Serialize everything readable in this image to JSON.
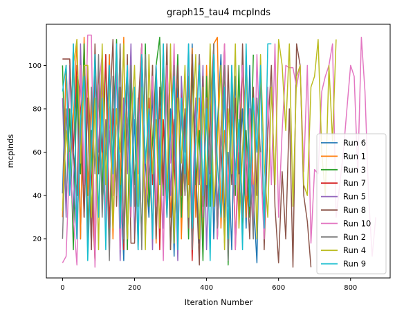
{
  "chart_data": {
    "type": "line",
    "title": "graph15_tau4 mcpInds",
    "xlabel": "Iteration Number",
    "ylabel": "mcpInds",
    "xlim": [
      -45,
      910
    ],
    "ylim": [
      2,
      119
    ],
    "xticks": [
      0,
      200,
      400,
      600,
      800
    ],
    "yticks": [
      20,
      40,
      60,
      80,
      100
    ],
    "legend_position": "lower right",
    "grid": false,
    "series": [
      {
        "name": "Run 6",
        "color": "#1f77b4",
        "x": [
          0,
          10,
          20,
          30,
          40,
          50,
          60,
          70,
          80,
          90,
          100,
          110,
          120,
          130,
          140,
          150,
          160,
          170,
          180,
          190,
          200,
          210,
          220,
          230,
          240,
          250,
          260,
          270,
          280,
          290,
          300,
          310,
          320,
          330,
          340,
          350,
          360,
          370,
          380,
          390,
          400,
          410,
          420,
          430,
          440,
          450,
          460,
          470,
          480,
          490,
          500,
          510,
          520,
          530,
          540,
          550
        ],
        "y": [
          41,
          100,
          55,
          30,
          90,
          20,
          110,
          45,
          70,
          12,
          95,
          35,
          60,
          105,
          25,
          80,
          50,
          10,
          100,
          40,
          75,
          15,
          108,
          55,
          30,
          90,
          20,
          65,
          103,
          35,
          80,
          12,
          98,
          45,
          70,
          25,
          110,
          50,
          18,
          88,
          40,
          100,
          20,
          72,
          105,
          30,
          60,
          15,
          95,
          50,
          80,
          25,
          100,
          40,
          9,
          100
        ]
      },
      {
        "name": "Run 1",
        "color": "#ff7f0e",
        "x": [
          0,
          10,
          20,
          30,
          40,
          50,
          60,
          70,
          80,
          90,
          100,
          110,
          120,
          130,
          140,
          150,
          160,
          170,
          180,
          190,
          200,
          210,
          220,
          230,
          240,
          250,
          260,
          270,
          280,
          290,
          300,
          310,
          320,
          330,
          340,
          350,
          360,
          370,
          380,
          390,
          400,
          410,
          420,
          430,
          440,
          450,
          460,
          470,
          480,
          490,
          500,
          510,
          520,
          530
        ],
        "y": [
          30,
          100,
          50,
          75,
          112,
          20,
          113,
          40,
          88,
          10,
          100,
          60,
          30,
          105,
          20,
          80,
          45,
          113,
          15,
          95,
          35,
          70,
          110,
          25,
          55,
          100,
          18,
          80,
          40,
          110,
          30,
          60,
          100,
          20,
          75,
          45,
          108,
          30,
          85,
          15,
          100,
          50,
          110,
          113,
          25,
          70,
          40,
          95,
          18,
          60,
          100,
          30,
          80,
          45
        ]
      },
      {
        "name": "Run 3",
        "color": "#2ca02c",
        "x": [
          0,
          10,
          20,
          30,
          40,
          50,
          60,
          70,
          80,
          90,
          100,
          110,
          120,
          130,
          140,
          150,
          160,
          170,
          180,
          190,
          200,
          210,
          220,
          230,
          240,
          250,
          260,
          270,
          280,
          290,
          300,
          310,
          320,
          330,
          340,
          350,
          360,
          370,
          380,
          390,
          400,
          410,
          420,
          430,
          440,
          450,
          460,
          470,
          480,
          490,
          500,
          510,
          520,
          530
        ],
        "y": [
          100,
          35,
          80,
          15,
          95,
          50,
          110,
          25,
          70,
          10,
          90,
          40,
          105,
          20,
          60,
          112,
          30,
          85,
          15,
          100,
          45,
          75,
          20,
          110,
          35,
          65,
          100,
          113,
          40,
          90,
          15,
          60,
          105,
          30,
          80,
          20,
          100,
          45,
          70,
          10,
          95,
          35,
          110,
          25,
          60,
          100,
          8,
          80,
          40,
          100,
          20,
          70,
          30,
          105
        ]
      },
      {
        "name": "Run 7",
        "color": "#d62728",
        "x": [
          0,
          10,
          20,
          30,
          40,
          50,
          60,
          70,
          80,
          90,
          100,
          110,
          120,
          130,
          140,
          150,
          160,
          170,
          180,
          190,
          200,
          210,
          220,
          230,
          240,
          250,
          260,
          270,
          280,
          290,
          300,
          310,
          320,
          330,
          340,
          350,
          360,
          370,
          380,
          390,
          400,
          410,
          420,
          430,
          440,
          450,
          460,
          470,
          480,
          490
        ],
        "y": [
          103,
          103,
          103,
          60,
          100,
          80,
          30,
          100,
          50,
          10,
          95,
          60,
          105,
          25,
          80,
          40,
          110,
          15,
          70,
          100,
          35,
          60,
          110,
          20,
          85,
          45,
          100,
          15,
          75,
          30,
          105,
          55,
          20,
          90,
          40,
          100,
          10,
          65,
          105,
          30,
          80,
          50,
          100,
          20,
          70,
          110,
          35,
          90,
          15,
          60
        ]
      },
      {
        "name": "Run 5",
        "color": "#9467bd",
        "x": [
          0,
          10,
          20,
          30,
          40,
          50,
          60,
          70,
          80,
          90,
          100,
          110,
          120,
          130,
          140,
          150,
          160,
          170,
          180,
          190,
          200,
          210,
          220,
          230,
          240,
          250,
          260,
          270,
          280,
          290,
          300,
          310,
          320,
          330,
          340,
          350,
          360,
          370,
          380,
          390,
          400,
          410,
          420,
          430,
          440,
          450,
          460,
          470,
          480,
          490,
          500
        ],
        "y": [
          85,
          30,
          100,
          50,
          20,
          110,
          45,
          80,
          15,
          95,
          60,
          105,
          25,
          70,
          40,
          100,
          10,
          85,
          50,
          110,
          20,
          65,
          95,
          35,
          80,
          15,
          100,
          55,
          25,
          105,
          40,
          75,
          10,
          95,
          60,
          110,
          30,
          85,
          45,
          100,
          15,
          70,
          105,
          35,
          60,
          90,
          20,
          100,
          50,
          75,
          30
        ]
      },
      {
        "name": "Run 8",
        "color": "#8c564b",
        "x": [
          0,
          10,
          20,
          30,
          40,
          50,
          60,
          70,
          80,
          90,
          100,
          110,
          120,
          130,
          140,
          150,
          160,
          170,
          180,
          190,
          200,
          210,
          220,
          230,
          240,
          250,
          260,
          270,
          280,
          290,
          300,
          310,
          320,
          330,
          340,
          350,
          360,
          370,
          380,
          390,
          400,
          410,
          420,
          430,
          440,
          450,
          460,
          470,
          480,
          490,
          500,
          510,
          520,
          530,
          540,
          550,
          560,
          570,
          580,
          590,
          600,
          610,
          620,
          630,
          640,
          650,
          660,
          670,
          680,
          690
        ],
        "y": [
          103,
          103,
          103,
          60,
          40,
          100,
          30,
          85,
          15,
          110,
          50,
          95,
          25,
          75,
          112,
          35,
          90,
          18,
          105,
          18,
          18,
          80,
          110,
          30,
          60,
          100,
          20,
          90,
          45,
          110,
          15,
          70,
          100,
          40,
          80,
          25,
          105,
          50,
          8,
          95,
          35,
          75,
          110,
          20,
          65,
          18,
          100,
          45,
          85,
          30,
          110,
          55,
          20,
          90,
          40,
          100,
          15,
          70,
          100,
          35,
          9,
          51,
          20,
          80,
          7,
          110,
          100,
          40,
          28,
          7
        ]
      },
      {
        "name": "Run 10",
        "color": "#e377c2",
        "x": [
          0,
          10,
          20,
          30,
          40,
          50,
          60,
          70,
          80,
          90,
          100,
          110,
          120,
          130,
          140,
          150,
          160,
          170,
          180,
          190,
          200,
          210,
          220,
          230,
          240,
          250,
          260,
          270,
          280,
          290,
          300,
          310,
          320,
          330,
          340,
          350,
          360,
          370,
          380,
          390,
          400,
          410,
          420,
          430,
          440,
          450,
          460,
          470,
          480,
          490,
          500,
          510,
          520,
          530,
          540,
          550,
          560,
          570,
          580,
          590,
          600,
          610,
          620,
          630,
          640,
          650,
          660,
          670,
          680,
          690,
          700,
          710,
          720,
          730,
          740,
          750,
          760,
          770,
          780,
          790,
          800,
          810,
          820,
          830,
          840,
          850,
          860,
          870
        ],
        "y": [
          9,
          12,
          60,
          30,
          8,
          100,
          45,
          114,
          114,
          7,
          90,
          105,
          25,
          80,
          40,
          110,
          15,
          70,
          100,
          30,
          85,
          50,
          110,
          20,
          65,
          95,
          35,
          75,
          10,
          100,
          55,
          110,
          25,
          80,
          40,
          100,
          15,
          70,
          105,
          30,
          85,
          50,
          100,
          20,
          65,
          110,
          35,
          90,
          15,
          75,
          100,
          40,
          80,
          25,
          105,
          55,
          20,
          90,
          45,
          110,
          30,
          70,
          100,
          99,
          99,
          90,
          100,
          51,
          100,
          18,
          52,
          50,
          88,
          95,
          100,
          110,
          30,
          45,
          60,
          80,
          100,
          95,
          50,
          113,
          88,
          40,
          12,
          30
        ]
      },
      {
        "name": "Run 2",
        "color": "#7f7f7f",
        "x": [
          0,
          10,
          20,
          30,
          40,
          50,
          60,
          70,
          80,
          90,
          100,
          110,
          120,
          130,
          140,
          150,
          160,
          170,
          180,
          190,
          200,
          210,
          220,
          230,
          240,
          250,
          260,
          270,
          280,
          290,
          300,
          310,
          320,
          330,
          340,
          350,
          360,
          370,
          380,
          390,
          400,
          410,
          420,
          430,
          440,
          450,
          460,
          470,
          480,
          490,
          500,
          510,
          520,
          530,
          540,
          550
        ],
        "y": [
          20,
          80,
          45,
          110,
          25,
          65,
          100,
          15,
          90,
          50,
          105,
          30,
          75,
          10,
          95,
          40,
          110,
          20,
          70,
          100,
          35,
          85,
          15,
          105,
          55,
          25,
          90,
          45,
          110,
          30,
          70,
          100,
          20,
          80,
          40,
          95,
          15,
          65,
          105,
          35,
          85,
          50,
          110,
          25,
          70,
          100,
          10,
          90,
          45,
          75,
          30,
          105,
          55,
          20,
          85,
          60
        ]
      },
      {
        "name": "Run 4",
        "color": "#bcbd22",
        "x": [
          0,
          10,
          20,
          30,
          40,
          50,
          60,
          70,
          80,
          90,
          100,
          110,
          120,
          130,
          140,
          150,
          160,
          170,
          180,
          190,
          200,
          210,
          220,
          230,
          240,
          250,
          260,
          270,
          280,
          290,
          300,
          310,
          320,
          330,
          340,
          350,
          360,
          370,
          380,
          390,
          400,
          410,
          420,
          430,
          440,
          450,
          460,
          470,
          480,
          490,
          500,
          510,
          520,
          530,
          540,
          550,
          560,
          570,
          580,
          590,
          600,
          610,
          620,
          630,
          640,
          650,
          660,
          670,
          680,
          690,
          700,
          710,
          720,
          730,
          740,
          750,
          760
        ],
        "y": [
          33,
          70,
          50,
          100,
          112,
          55,
          100,
          100,
          30,
          85,
          15,
          110,
          45,
          95,
          25,
          80,
          60,
          110,
          20,
          70,
          100,
          35,
          90,
          15,
          105,
          50,
          75,
          25,
          100,
          40,
          110,
          18,
          85,
          55,
          100,
          30,
          70,
          105,
          20,
          90,
          45,
          110,
          35,
          65,
          100,
          15,
          80,
          50,
          110,
          25,
          60,
          100,
          40,
          85,
          20,
          105,
          55,
          30,
          90,
          45,
          112,
          100,
          70,
          110,
          35,
          95,
          100,
          45,
          40,
          90,
          95,
          112,
          60,
          40,
          100,
          65,
          112
        ]
      },
      {
        "name": "Run 9",
        "color": "#17becf",
        "x": [
          0,
          10,
          20,
          30,
          40,
          50,
          60,
          70,
          80,
          90,
          100,
          110,
          120,
          130,
          140,
          150,
          160,
          170,
          180,
          190,
          200,
          210,
          220,
          230,
          240,
          250,
          260,
          270,
          280,
          290,
          300,
          310,
          320,
          330,
          340,
          350,
          360,
          370,
          380,
          390,
          400,
          410,
          420,
          430,
          440,
          450,
          460,
          470,
          480,
          490,
          500,
          510,
          520,
          530,
          540,
          550,
          560,
          570,
          580
        ],
        "y": [
          88,
          100,
          40,
          110,
          20,
          75,
          95,
          10,
          60,
          105,
          30,
          85,
          15,
          100,
          50,
          110,
          25,
          70,
          100,
          35,
          90,
          15,
          105,
          55,
          80,
          20,
          100,
          45,
          110,
          30,
          70,
          95,
          15,
          85,
          50,
          110,
          25,
          65,
          100,
          40,
          80,
          10,
          105,
          55,
          30,
          90,
          20,
          100,
          45,
          75,
          15,
          110,
          35,
          85,
          60,
          100,
          25,
          110,
          110
        ]
      }
    ]
  }
}
